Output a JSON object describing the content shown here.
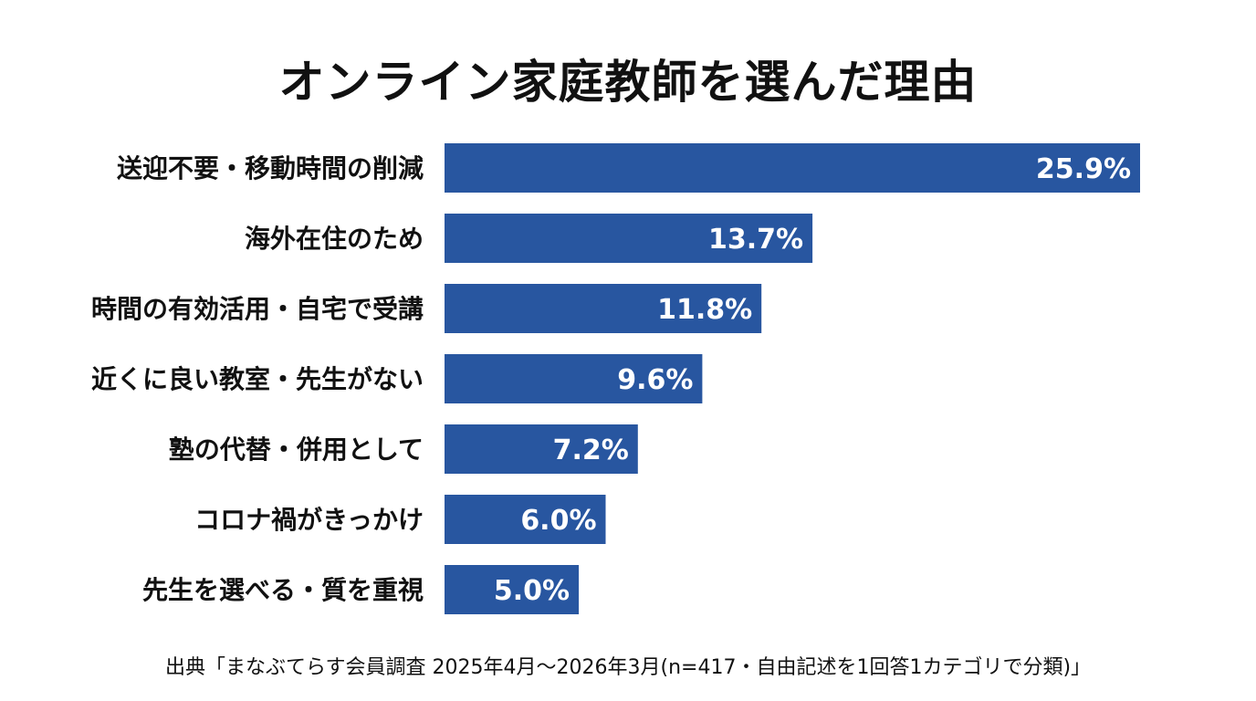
{
  "colors": {
    "bar": "#2856a0",
    "data_label": "#ffffff",
    "text": "#111111"
  },
  "chart_data": {
    "type": "bar",
    "orientation": "horizontal",
    "title": "オンライン家庭教師を選んだ理由",
    "categories": [
      "送迎不要・移動時間の削減",
      "海外在住のため",
      "時間の有効活用・自宅で受講",
      "近くに良い教室・先生がない",
      "塾の代替・併用として",
      "コロナ禍がきっかけ",
      "先生を選べる・質を重視"
    ],
    "values": [
      25.9,
      13.7,
      11.8,
      9.6,
      7.2,
      6.0,
      5.0
    ],
    "value_labels": [
      "25.9%",
      "13.7%",
      "11.8%",
      "9.6%",
      "7.2%",
      "6.0%",
      "5.0%"
    ],
    "unit": "%",
    "xlim": [
      0,
      25.9
    ],
    "grid": false,
    "legend": "none"
  },
  "source": "出典「まなぶてらす会員調査 2025年4月〜2026年3月(n=417・自由記述を1回答1カテゴリで分類)」"
}
